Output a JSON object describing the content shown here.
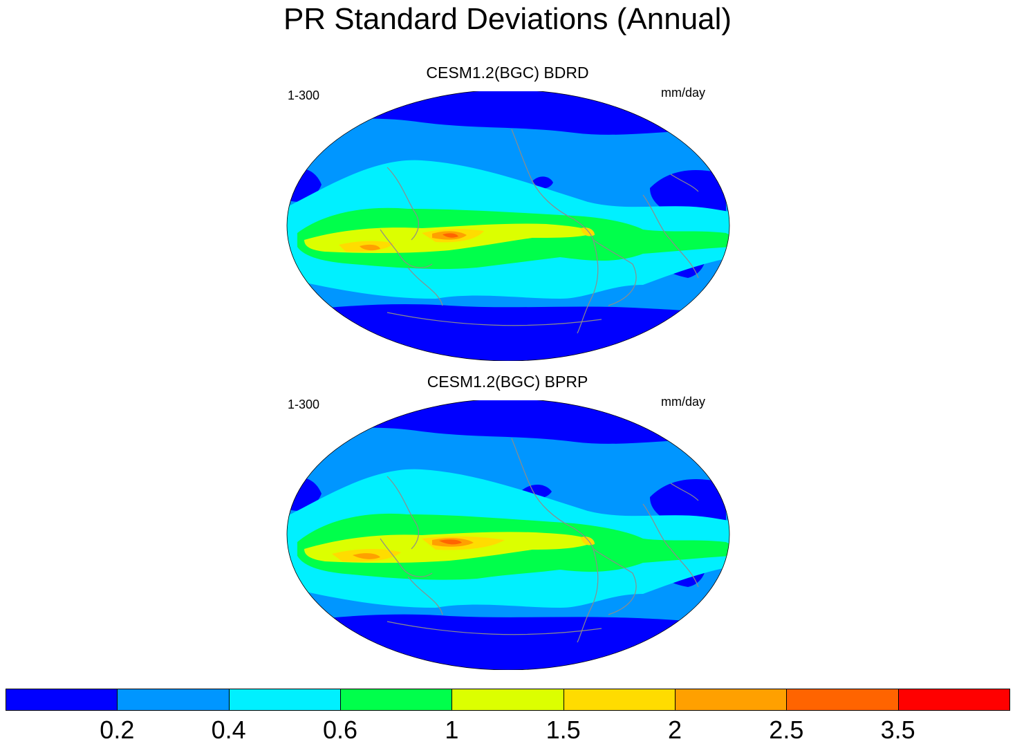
{
  "title": "PR Standard Deviations (Annual)",
  "panels": [
    {
      "title": "CESM1.2(BGC) BDRD",
      "left_label": "1-300",
      "right_label": "mm/day"
    },
    {
      "title": "CESM1.2(BGC) BPRP",
      "left_label": "1-300",
      "right_label": "mm/day"
    }
  ],
  "colorbar": {
    "colors": [
      "#0000ff",
      "#0096ff",
      "#00f0ff",
      "#00ff4b",
      "#dcff00",
      "#ffdc00",
      "#ffa000",
      "#ff6400",
      "#ff0000"
    ],
    "labels": [
      "0.2",
      "0.4",
      "0.6",
      "1",
      "1.5",
      "2",
      "2.5",
      "3.5"
    ]
  },
  "colors": {
    "coast": "#8c8c8c"
  }
}
